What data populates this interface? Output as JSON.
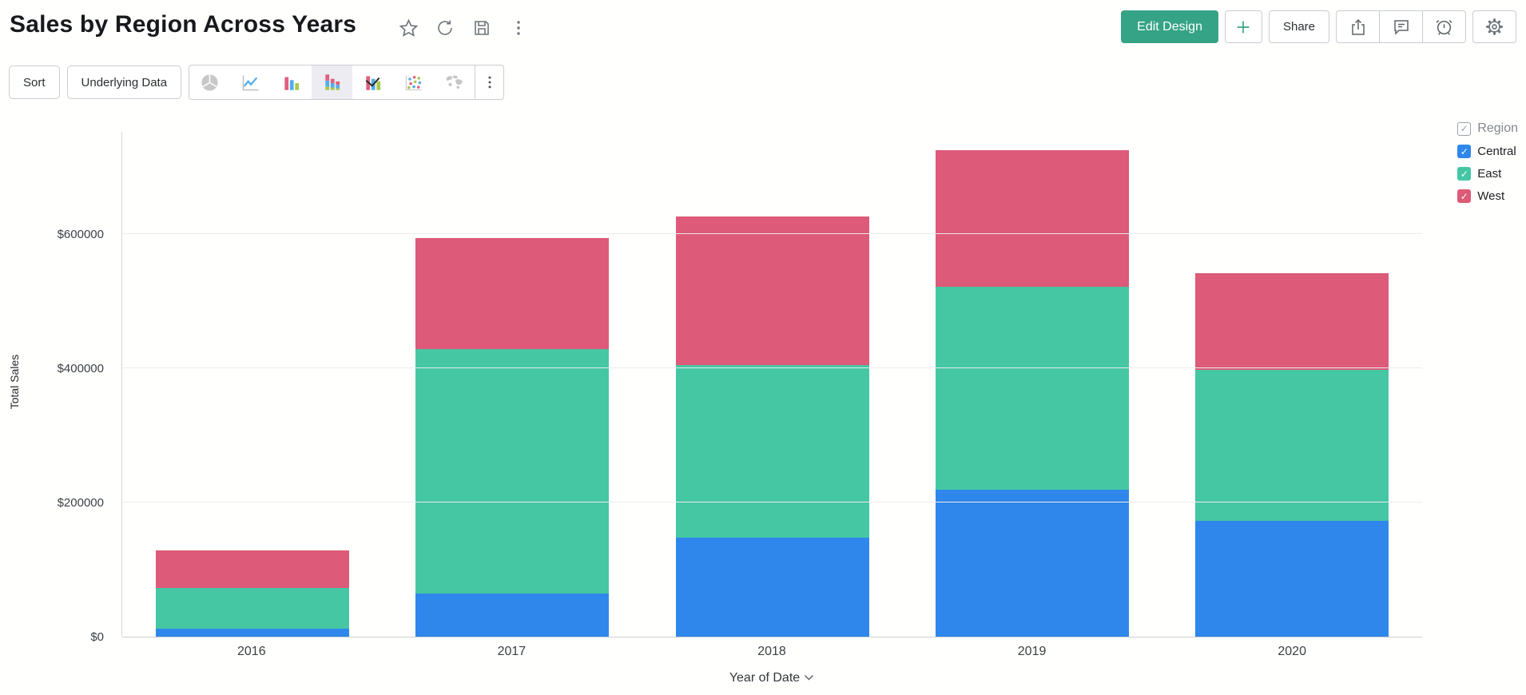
{
  "header": {
    "title": "Sales by Region Across Years",
    "title_icons": [
      "star-icon",
      "refresh-icon",
      "save-icon",
      "kebab-menu-icon"
    ],
    "edit_design_label": "Edit Design",
    "add_label": "+",
    "share_label": "Share",
    "action_icons": [
      "export-icon",
      "comment-icon",
      "alarm-icon",
      "gear-icon"
    ],
    "accent_color": "#35a385"
  },
  "toolbar": {
    "sort_label": "Sort",
    "underlying_data_label": "Underlying Data",
    "chart_types": [
      "pie",
      "line",
      "bar",
      "stacked-bar",
      "bar-line",
      "scatter",
      "map",
      "more"
    ],
    "selected_chart_type": "stacked-bar"
  },
  "legend": {
    "title": "Region",
    "items": [
      {
        "label": "Central",
        "color": "#2f87eb",
        "checked": true
      },
      {
        "label": "East",
        "color": "#45c7a4",
        "checked": true
      },
      {
        "label": "West",
        "color": "#dd5a78",
        "checked": true
      }
    ]
  },
  "chart_data": {
    "type": "bar",
    "stacked": true,
    "title": "Sales by Region Across Years",
    "categories": [
      "2016",
      "2017",
      "2018",
      "2019",
      "2020"
    ],
    "series": [
      {
        "name": "Central",
        "color": "#2f87eb",
        "values": [
          12000,
          64000,
          148000,
          219000,
          173000
        ]
      },
      {
        "name": "East",
        "color": "#45c7a4",
        "values": [
          61000,
          364000,
          257000,
          302000,
          224000
        ]
      },
      {
        "name": "West",
        "color": "#dd5a78",
        "values": [
          55000,
          166000,
          221000,
          204000,
          144000
        ]
      }
    ],
    "totals": [
      128000,
      594000,
      626000,
      725000,
      541000
    ],
    "xlabel": "Year of Date",
    "ylabel": "Total Sales",
    "ylim": [
      0,
      752000
    ],
    "yticks": [
      0,
      200000,
      400000,
      600000
    ],
    "ytick_labels": [
      "$0",
      "$200000",
      "$400000",
      "$600000"
    ],
    "grid": true,
    "legend_position": "right"
  }
}
